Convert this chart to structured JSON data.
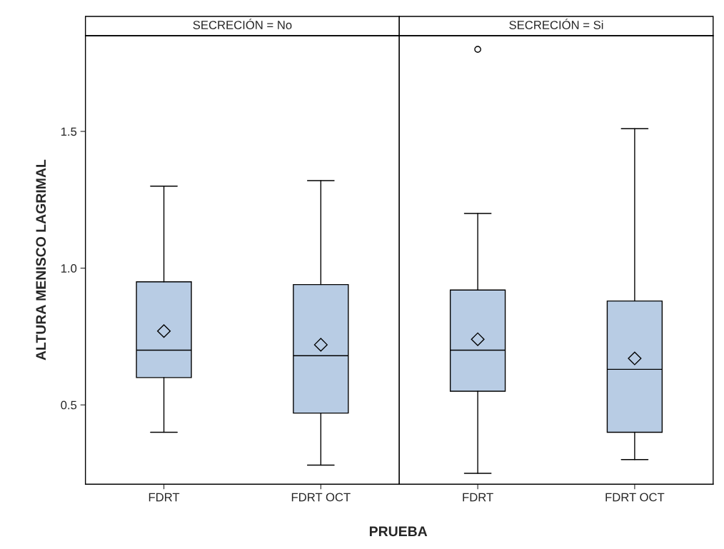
{
  "chart_data": [
    {
      "type": "box",
      "title": "SECRECIÓN = No",
      "ylabel": "ALTURA MENISCO LAGRIMAL",
      "xlabel": "PRUEBA",
      "categories": [
        "FDRT",
        "FDRT OCT"
      ],
      "color": "#b8cce4",
      "ylim": [
        0.21,
        1.85
      ],
      "yticks": [
        0.5,
        {
          "value": 1,
          "label": "1.0"
        },
        1.5
      ],
      "marker": "diamond",
      "grid": false,
      "boxes": [
        {
          "low": 0.4,
          "q1": 0.6,
          "median": 0.7,
          "q3": 0.95,
          "high": 1.3,
          "mean": 0.77
        },
        {
          "low": 0.28,
          "q1": 0.47,
          "median": 0.68,
          "q3": 0.94,
          "high": 1.32,
          "mean": 0.72
        }
      ]
    },
    {
      "type": "box",
      "title": "SECRECIÓN = Si",
      "categories": [
        "FDRT",
        "FDRT OCT"
      ],
      "color": "#b8cce4",
      "ylim": [
        0.21,
        1.85
      ],
      "tick_labels": "x",
      "marker": "diamond",
      "grid": false,
      "boxes": [
        {
          "low": 0.25,
          "q1": 0.55,
          "median": 0.7,
          "q3": 0.92,
          "high": 1.2,
          "mean": 0.74,
          "outliers": [
            1.8
          ]
        },
        {
          "low": 0.3,
          "q1": 0.4,
          "median": 0.63,
          "q3": 0.88,
          "high": 1.51,
          "mean": 0.67
        }
      ]
    }
  ]
}
